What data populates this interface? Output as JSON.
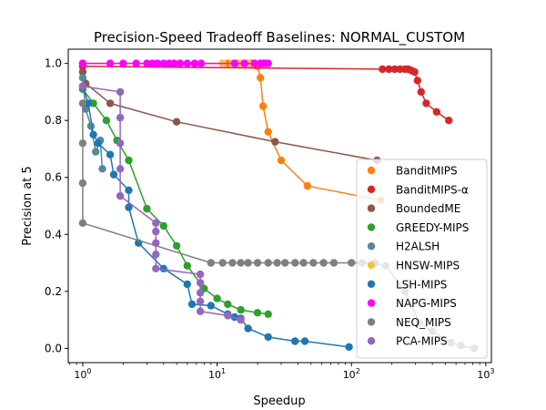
{
  "chart_data": {
    "type": "scatter",
    "title": "Precision-Speed Tradeoff Baselines: NORMAL_CUSTOM",
    "xlabel": "Speedup",
    "ylabel": "Precision at 5",
    "xscale": "log",
    "xlim": [
      0.78,
      1100
    ],
    "ylim": [
      -0.05,
      1.05
    ],
    "xticks": [
      {
        "value": 1,
        "base": "10",
        "exp": "0"
      },
      {
        "value": 10,
        "base": "10",
        "exp": "1"
      },
      {
        "value": 100,
        "base": "10",
        "exp": "2"
      },
      {
        "value": 1000,
        "base": "10",
        "exp": "3"
      }
    ],
    "yticks": [
      "0.0",
      "0.2",
      "0.4",
      "0.6",
      "0.8",
      "1.0"
    ],
    "grid": false,
    "legend_position": "lower-right",
    "series": [
      {
        "name": "BanditMIPS",
        "color": "#ff7f0e",
        "points": [
          [
            1,
            1.0
          ],
          [
            11,
            1.0
          ],
          [
            12,
            1.0
          ],
          [
            13,
            1.0
          ],
          [
            14,
            1.0
          ],
          [
            15,
            1.0
          ],
          [
            16,
            1.0
          ],
          [
            17,
            1.0
          ],
          [
            18,
            1.0
          ],
          [
            19,
            1.0
          ],
          [
            20,
            0.99
          ],
          [
            21,
            0.95
          ],
          [
            22,
            0.85
          ],
          [
            24,
            0.76
          ],
          [
            30,
            0.66
          ],
          [
            47,
            0.57
          ],
          [
            165,
            0.52
          ]
        ]
      },
      {
        "name": "BanditMIPS-α",
        "color": "#d62728",
        "points": [
          [
            1,
            0.99
          ],
          [
            170,
            0.98
          ],
          [
            190,
            0.98
          ],
          [
            210,
            0.98
          ],
          [
            230,
            0.98
          ],
          [
            250,
            0.98
          ],
          [
            265,
            0.98
          ],
          [
            280,
            0.975
          ],
          [
            295,
            0.97
          ],
          [
            310,
            0.94
          ],
          [
            330,
            0.9
          ],
          [
            360,
            0.86
          ],
          [
            430,
            0.83
          ],
          [
            530,
            0.8
          ]
        ]
      },
      {
        "name": "BoundedME",
        "color": "#8c564b",
        "points": [
          [
            1,
            0.97
          ],
          [
            1.05,
            0.93
          ],
          [
            1.6,
            0.86
          ],
          [
            5,
            0.795
          ],
          [
            27,
            0.725
          ],
          [
            155,
            0.66
          ]
        ]
      },
      {
        "name": "GREEDY-MIPS",
        "color": "#2ca02c",
        "points": [
          [
            1,
            0.91
          ],
          [
            1.2,
            0.86
          ],
          [
            1.5,
            0.8
          ],
          [
            1.8,
            0.73
          ],
          [
            2.2,
            0.66
          ],
          [
            3,
            0.49
          ],
          [
            4,
            0.43
          ],
          [
            5,
            0.36
          ],
          [
            6,
            0.29
          ],
          [
            8,
            0.21
          ],
          [
            10,
            0.175
          ],
          [
            12,
            0.155
          ],
          [
            15,
            0.135
          ],
          [
            20,
            0.125
          ],
          [
            24,
            0.12
          ]
        ]
      },
      {
        "name": "H2ALSH",
        "color": "#558899",
        "points": [
          [
            1,
            0.95
          ],
          [
            1.05,
            0.84
          ],
          [
            1.15,
            0.78
          ],
          [
            1.25,
            0.69
          ],
          [
            1.35,
            0.73
          ],
          [
            1.4,
            0.63
          ]
        ]
      },
      {
        "name": "HNSW-MIPS",
        "color": "#f5c542",
        "points": [
          [
            1,
            1.0
          ],
          [
            11,
            1.0
          ],
          [
            13,
            1.0
          ],
          [
            15,
            1.0
          ],
          [
            17,
            1.0
          ],
          [
            19,
            1.0
          ]
        ]
      },
      {
        "name": "LSH-MIPS",
        "color": "#1f77b4",
        "points": [
          [
            1,
            0.92
          ],
          [
            1.1,
            0.86
          ],
          [
            1.2,
            0.75
          ],
          [
            1.3,
            0.72
          ],
          [
            1.6,
            0.68
          ],
          [
            1.7,
            0.61
          ],
          [
            2.2,
            0.555
          ],
          [
            2.2,
            0.495
          ],
          [
            2.6,
            0.37
          ],
          [
            4,
            0.28
          ],
          [
            6,
            0.225
          ],
          [
            6.5,
            0.155
          ],
          [
            9,
            0.15
          ],
          [
            12,
            0.12
          ],
          [
            13.5,
            0.11
          ],
          [
            15,
            0.105
          ],
          [
            17,
            0.07
          ],
          [
            24,
            0.04
          ],
          [
            38,
            0.025
          ],
          [
            45,
            0.025
          ],
          [
            96,
            0.005
          ]
        ]
      },
      {
        "name": "NAPG-MIPS",
        "color": "#ff00ff",
        "points": [
          [
            1,
            1.0
          ],
          [
            1.6,
            1.0
          ],
          [
            2,
            1.0
          ],
          [
            2.5,
            1.0
          ],
          [
            3,
            1.0
          ],
          [
            3.3,
            1.0
          ],
          [
            3.6,
            1.0
          ],
          [
            4,
            1.0
          ],
          [
            4.4,
            1.0
          ],
          [
            4.8,
            1.0
          ],
          [
            5.3,
            1.0
          ],
          [
            6,
            1.0
          ],
          [
            6.8,
            1.0
          ],
          [
            7.6,
            1.0
          ],
          [
            13.5,
            1.0
          ],
          [
            16,
            1.0
          ],
          [
            19,
            1.0
          ],
          [
            21,
            1.0
          ],
          [
            22,
            1.0
          ],
          [
            23,
            1.0
          ],
          [
            24,
            1.0
          ]
        ]
      },
      {
        "name": "NEQ_MIPS",
        "color": "#7f7f7f",
        "points": [
          [
            1,
            0.86
          ],
          [
            1,
            0.72
          ],
          [
            1,
            0.58
          ],
          [
            1,
            0.44
          ],
          [
            9,
            0.3
          ],
          [
            11,
            0.3
          ],
          [
            13,
            0.3
          ],
          [
            15,
            0.3
          ],
          [
            17,
            0.3
          ],
          [
            20,
            0.3
          ],
          [
            24,
            0.3
          ],
          [
            28,
            0.3
          ],
          [
            32,
            0.3
          ],
          [
            38,
            0.3
          ],
          [
            44,
            0.3
          ],
          [
            52,
            0.3
          ],
          [
            62,
            0.3
          ],
          [
            74,
            0.3
          ],
          [
            100,
            0.3
          ],
          [
            120,
            0.3
          ],
          [
            150,
            0.3
          ],
          [
            180,
            0.29
          ],
          [
            250,
            0.2
          ],
          [
            320,
            0.09
          ],
          [
            400,
            0.06
          ],
          [
            550,
            0.02
          ],
          [
            650,
            0.01
          ],
          [
            820,
            0.0
          ]
        ]
      },
      {
        "name": "PCA-MIPS",
        "color": "#9467bd",
        "points": [
          [
            1,
            0.92
          ],
          [
            1.9,
            0.9
          ],
          [
            1.9,
            0.81
          ],
          [
            1.9,
            0.72
          ],
          [
            1.9,
            0.63
          ],
          [
            1.9,
            0.535
          ],
          [
            3.5,
            0.44
          ],
          [
            3.5,
            0.41
          ],
          [
            3.5,
            0.37
          ],
          [
            3.5,
            0.33
          ],
          [
            3.5,
            0.28
          ],
          [
            7.5,
            0.26
          ],
          [
            7.5,
            0.23
          ],
          [
            7.5,
            0.195
          ],
          [
            7.5,
            0.165
          ],
          [
            7.5,
            0.13
          ],
          [
            12,
            0.115
          ],
          [
            15,
            0.1
          ]
        ]
      }
    ]
  }
}
